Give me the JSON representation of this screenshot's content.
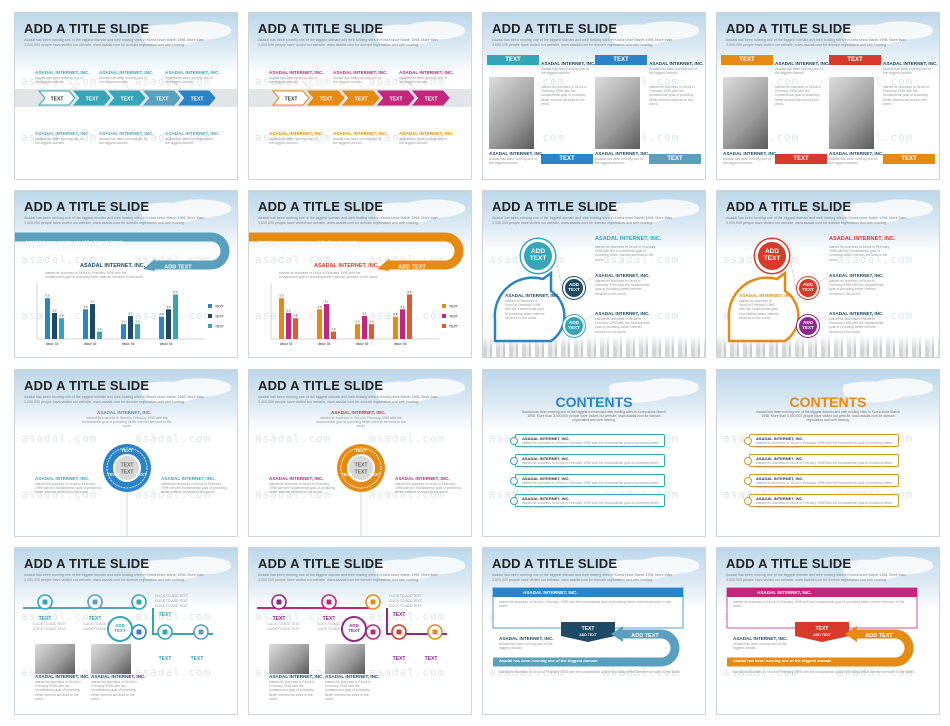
{
  "slide_title": "ADD A TITLE SLIDE",
  "contents_title": "CONTENTS",
  "sub_text": "Asadal has been running one of the biggest domain and web hosting sites in Korea since March 1998. More than 3,000,000 people have visited our website, www.asadal.com for domain registration and web hosting.",
  "company": "ASADAL INTERNET, INC.",
  "company_short": "ASADAL INTERNET, INC.",
  "desc": "Asadal has been running one of the biggest domain",
  "long_desc": "started its business in Seoul in February 1998 with the fundamental goal of providing better internet services to the world.",
  "text": "TEXT",
  "add_text": "ADD TEXT",
  "add_text_2": "ADD\nTEXT",
  "running": "Asadal has been running one of the biggest domain",
  "watermark": "asadal.com",
  "legend": [
    "TEXT",
    "TEXT",
    "TEXT"
  ],
  "categories": [
    "Value 01",
    "Value 02",
    "Value 03",
    "Value 04"
  ],
  "chart_values": [
    [
      5.5,
      3.5,
      2.8
    ],
    [
      4.0,
      4.7,
      1.0
    ],
    [
      2.0,
      3.1,
      2.0
    ],
    [
      3.0,
      4.0,
      6.0
    ]
  ],
  "value_labels": [
    "5.5",
    "3.5",
    "2.8",
    "4.0",
    "4.7",
    "1.0",
    "2.0",
    "3.1",
    "2.0",
    "3.0",
    "4.0",
    "6.0"
  ],
  "click_text": "CLICK TO ADD TEXT",
  "colors": {
    "blue": "#2b84c8",
    "teal": "#35a6b8",
    "steel": "#5aa0be",
    "orange": "#e58a12",
    "magenta": "#c4267d",
    "red": "#d83a2a",
    "gold": "#cf9b1c",
    "navy": "#1e4a66",
    "purple": "#8b2a89"
  }
}
